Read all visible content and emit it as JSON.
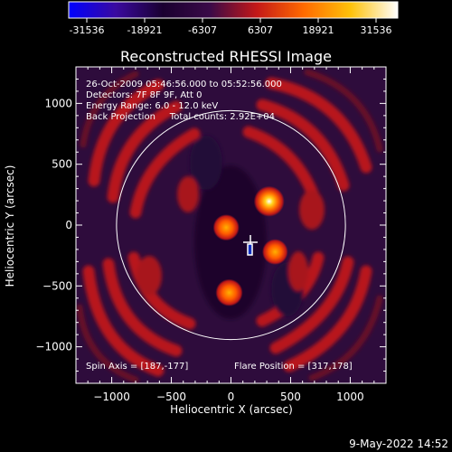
{
  "title": "Reconstructed RHESSI Image",
  "timestamp": "9-May-2022 14:52",
  "colorbar": {
    "ticks": [
      "-31536",
      "-18921",
      "-6307",
      "6307",
      "18921",
      "31536"
    ],
    "stops": [
      "#0000ff",
      "#3a0aa0",
      "#1a0030",
      "#3a0a48",
      "#c41818",
      "#ff6a00",
      "#ffc20a",
      "#ffffff"
    ]
  },
  "annotations": {
    "time_range": "26-Oct-2009 05:46:56.000 to 05:52:56.000",
    "detectors": "Detectors: 7F 8F 9F, Att 0",
    "energy_range": "Energy Range: 6.0 - 12.0 keV",
    "method_counts": "Back Projection     Total counts: 2.92E+04",
    "spin_axis": "Spin Axis = [187,-177]",
    "flare_position": "Flare Position = [317,178]"
  },
  "chart_data": {
    "type": "heatmap",
    "title": "Reconstructed RHESSI Image",
    "xlabel": "Heliocentric X (arcsec)",
    "ylabel": "Heliocentric Y (arcsec)",
    "xlim": [
      -1300,
      1300
    ],
    "ylim": [
      -1300,
      1300
    ],
    "xticks": [
      -1000,
      -500,
      0,
      500,
      1000
    ],
    "yticks": [
      -1000,
      -500,
      0,
      500,
      1000
    ],
    "xtick_labels": [
      "−1000",
      "−500",
      "0",
      "500",
      "1000"
    ],
    "ytick_labels": [
      "1000",
      "500",
      "0",
      "−500",
      "−1000"
    ],
    "value_range": [
      -31536,
      31536
    ],
    "solar_limb": {
      "center": [
        0,
        0
      ],
      "radius": 960
    },
    "marker": {
      "name": "Spin Axis",
      "x": 187,
      "y": -177
    },
    "sources": [
      {
        "x": 320,
        "y": 195,
        "peak": 31536
      },
      {
        "x": -40,
        "y": -20,
        "peak": 22000
      },
      {
        "x": 370,
        "y": -220,
        "peak": 21000
      },
      {
        "x": -15,
        "y": -555,
        "peak": 24000
      }
    ]
  }
}
